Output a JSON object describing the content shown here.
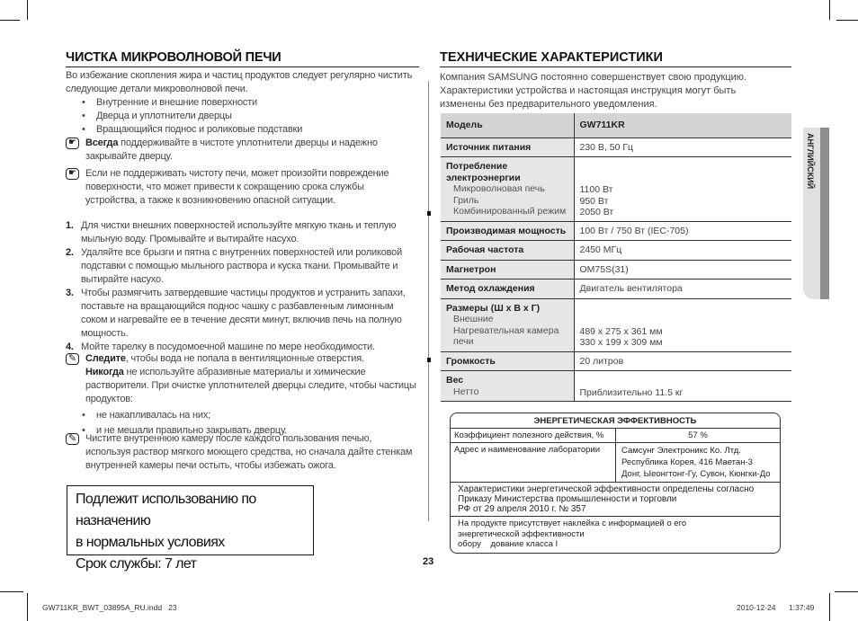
{
  "left": {
    "title": "ЧИСТКА МИКРОВОЛНОВОЙ ПЕЧИ",
    "intro": "Во избежание скопления жира и частиц продуктов следует регулярно чистить следующие детали микроволновой печи.",
    "bullets": [
      "Внутренние и внешние поверхности",
      "Дверца и уплотнители дверцы",
      "Вращающийся поднос и роликовые подставки"
    ],
    "note1_bold": "Всегда",
    "note1_text": " поддерживайте в чистоте уплотнители дверцы и надежно закрывайте дверцу.",
    "note2_text": "Если не поддерживать чистоту печи, может произойти повреждение поверхности, что может привести к сокращению срока службы устройства, а также к возникновению опасной ситуации.",
    "steps": [
      {
        "n": "1.",
        "text": "Для чистки внешних поверхностей используйте мягкую ткань и теплую мыльную воду. Промывайте и вытирайте насухо."
      },
      {
        "n": "2.",
        "text": "Удаляйте все брызги и пятна с внутренних поверхностей или роликовой подставки с помощью мыльного раствора и куска ткани. Промывайте и вытирайте насухо."
      },
      {
        "n": "3.",
        "text": "Чтобы размягчить затвердевшие частицы продуктов и устранить запахи, поставьте на вращающийся поднос чашку с разбавленным лимонным соком и нагревайте ее в течение десяти минут, включив печь на полную мощность."
      },
      {
        "n": "4.",
        "text": "Мойте тарелку в посудомоечной машине по мере необходимости."
      }
    ],
    "note3_bold1": "Следите",
    "note3_text1": ", чтобы вода не попала в вентиляционные отверстия.",
    "note3_bold2": "Никогда",
    "note3_text2": " не используйте абразивные материалы и химические растворители. При очистке уплотнителей дверцы следите, чтобы частицы продуктов:",
    "note3_bullets": [
      "не накапливалась на них;",
      "и не мешали правильно закрывать дверцу."
    ],
    "note4_text": "Чистите внутреннюю камеру после каждого пользования печью, используя раствор мягкого моющего средства, но сначала дайте стенкам внутренней камеры печи остыть, чтобы избежать ожога.",
    "box": [
      "Подлежит использованию по назначению",
      "в нормальных условиях",
      "Срок службы: 7 лет"
    ]
  },
  "right": {
    "title": "ТЕХНИЧЕСКИЕ ХАРАКТЕРИСТИКИ",
    "intro": "Компания SAMSUNG постоянно совершенствует свою продукцию. Характеристики устройства и настоящая инструкция могут быть изменены без предварительного уведомления.",
    "model_label": "Модель",
    "model_value": "GW711KR",
    "power_label": "Источник питания",
    "power_value": "230 В, 50 Гц",
    "consumption_label": "Потребление электроэнергии",
    "consumption_subs": [
      "Микроволновая печь",
      "Гриль",
      "Комбинированный режим"
    ],
    "consumption_values": [
      "1100 Вт",
      "950 Вт",
      "2050 Вт"
    ],
    "output_label": "Производимая мощность",
    "output_value": "100 Вт / 750 Вт (IEC-705)",
    "freq_label": "Рабочая частота",
    "freq_value": "2450 МГц",
    "magnetron_label": "Магнетрон",
    "magnetron_value": "OM75S(31)",
    "cooling_label": "Метод охлаждения",
    "cooling_value": "Двигатель вентилятора",
    "dims_label": "Размеры (Ш x В x Г)",
    "dims_subs": [
      "Внешние",
      "Нагревательная камера печи"
    ],
    "dims_values": [
      "489 x 275 x 361 мм",
      "330 x 199 x 309 мм"
    ],
    "volume_label": "Громкость",
    "volume_value": "20 литров",
    "weight_label": "Вес",
    "weight_sub": "Нетто",
    "weight_value": "Приблизительно 11.5 кг"
  },
  "energy": {
    "title": "ЭНЕРГЕТИЧЕСКАЯ ЭФФЕКТИВНОСТЬ",
    "eff_label": "Коэффициент полезного действия,  %",
    "eff_value": "57 %",
    "lab_label": "Адрес и наименование лаборатории",
    "lab_lines": [
      "Самсунг Электроникс Ко. Лтд.",
      "Республика Корея, 416 Маетан-3",
      "Донг, Ыеонгтонг-Гу, Сувон, Кюнгки-До"
    ],
    "decree": [
      "Характеристики энергетической эффективности определены согласно",
      "Приказу Министерства промышленности и торговли",
      "РФ от 29 апреля 2010 г. № 357"
    ],
    "sticker": [
      "На продукте присутствует наклейка с информацией о его",
      "энергетической эффективности",
      "обору    дование класса I"
    ]
  },
  "side_tab": "АНГЛИЙСКИЙ",
  "page_number": "23",
  "footer": {
    "file": "GW711KR_BWT_03895A_RU.indd   23",
    "date": "2010-12-24",
    "time": "1:37:49"
  }
}
